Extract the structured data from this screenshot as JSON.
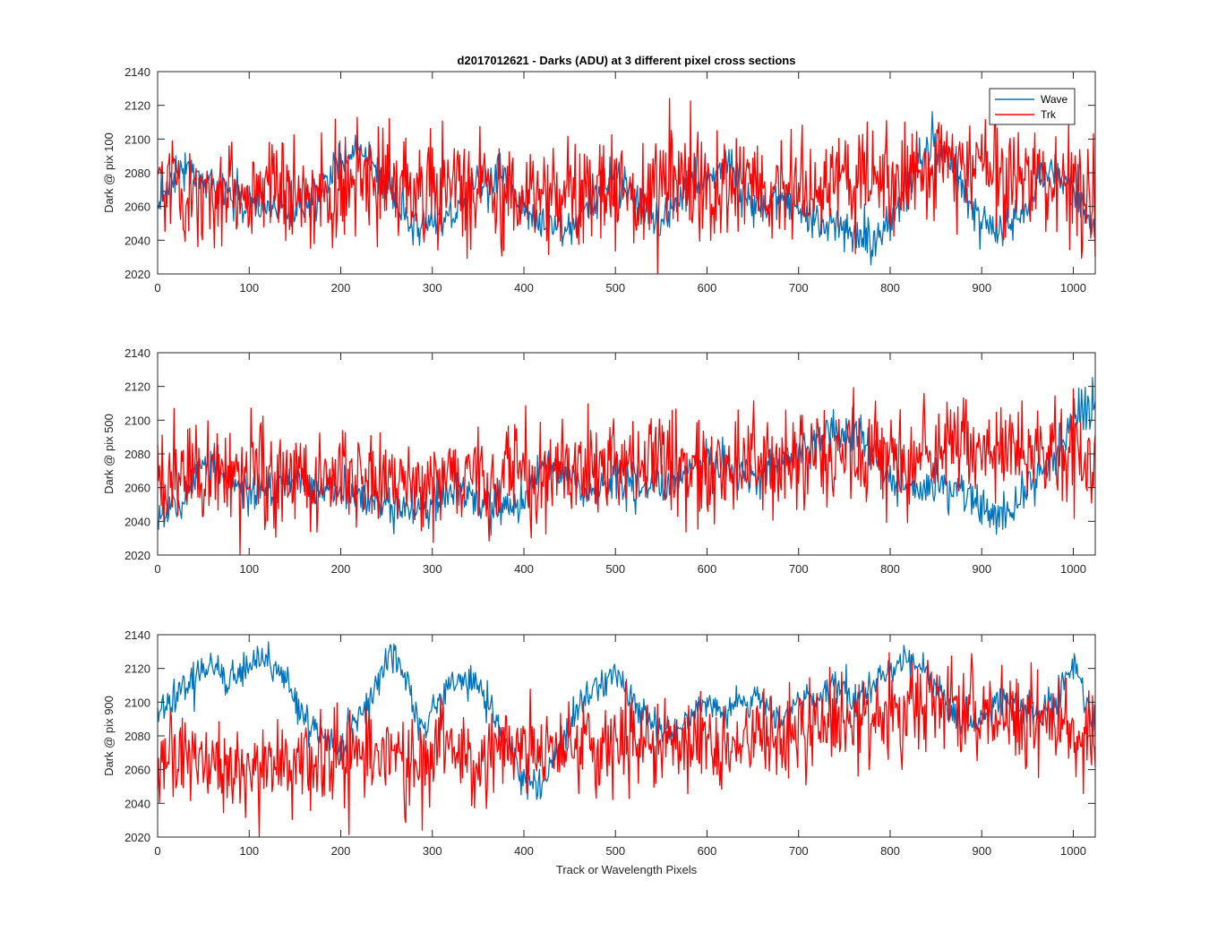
{
  "chart_data": [
    {
      "type": "line",
      "title": "d2017012621 - Darks (ADU) at 3 different pixel cross sections",
      "ylabel": "Dark @ pix 100",
      "xlabel": "",
      "xlim": [
        0,
        1024
      ],
      "ylim": [
        2020,
        2140
      ],
      "xticks": [
        0,
        100,
        200,
        300,
        400,
        500,
        600,
        700,
        800,
        900,
        1000
      ],
      "yticks": [
        2020,
        2040,
        2060,
        2080,
        2100,
        2120,
        2140
      ],
      "legend": {
        "placement": "top-right",
        "entries": [
          "Wave",
          "Trk"
        ]
      },
      "series": [
        {
          "name": "Wave",
          "color": "#0072BD",
          "x": [
            0,
            25,
            50,
            75,
            100,
            125,
            150,
            175,
            200,
            220,
            250,
            275,
            300,
            325,
            350,
            375,
            400,
            425,
            450,
            475,
            500,
            525,
            550,
            575,
            600,
            625,
            650,
            675,
            700,
            725,
            750,
            775,
            800,
            825,
            850,
            875,
            900,
            925,
            950,
            975,
            1000,
            1024
          ],
          "y": [
            2065,
            2082,
            2075,
            2068,
            2063,
            2058,
            2060,
            2066,
            2085,
            2095,
            2072,
            2050,
            2052,
            2058,
            2072,
            2080,
            2060,
            2045,
            2050,
            2062,
            2082,
            2060,
            2052,
            2068,
            2078,
            2082,
            2060,
            2065,
            2058,
            2050,
            2045,
            2038,
            2050,
            2082,
            2100,
            2078,
            2050,
            2048,
            2062,
            2085,
            2070,
            2045
          ],
          "noise": 6
        },
        {
          "name": "Trk",
          "color": "#FF0000",
          "x": [
            0,
            100,
            200,
            300,
            400,
            500,
            600,
            700,
            800,
            900,
            1000,
            1024
          ],
          "y": [
            2070,
            2068,
            2070,
            2070,
            2068,
            2070,
            2068,
            2072,
            2078,
            2085,
            2075,
            2065
          ],
          "noise": 16
        }
      ]
    },
    {
      "type": "line",
      "title": "",
      "ylabel": "Dark @ pix 500",
      "xlabel": "",
      "xlim": [
        0,
        1024
      ],
      "ylim": [
        2020,
        2140
      ],
      "xticks": [
        0,
        100,
        200,
        300,
        400,
        500,
        600,
        700,
        800,
        900,
        1000
      ],
      "yticks": [
        2020,
        2040,
        2060,
        2080,
        2100,
        2120,
        2140
      ],
      "series": [
        {
          "name": "Wave",
          "color": "#0072BD",
          "x": [
            0,
            25,
            50,
            75,
            100,
            125,
            150,
            175,
            200,
            225,
            250,
            275,
            300,
            325,
            350,
            375,
            400,
            425,
            450,
            475,
            500,
            525,
            550,
            575,
            600,
            625,
            650,
            675,
            700,
            725,
            750,
            775,
            800,
            825,
            850,
            875,
            900,
            925,
            950,
            975,
            1000,
            1024
          ],
          "y": [
            2045,
            2048,
            2075,
            2068,
            2055,
            2060,
            2065,
            2058,
            2060,
            2055,
            2050,
            2045,
            2052,
            2058,
            2052,
            2048,
            2052,
            2075,
            2065,
            2058,
            2065,
            2058,
            2062,
            2070,
            2080,
            2072,
            2065,
            2072,
            2082,
            2088,
            2095,
            2085,
            2065,
            2058,
            2065,
            2060,
            2048,
            2040,
            2062,
            2075,
            2100,
            2108
          ],
          "noise": 6
        },
        {
          "name": "Trk",
          "color": "#FF0000",
          "x": [
            0,
            100,
            200,
            300,
            400,
            500,
            600,
            700,
            800,
            900,
            1000,
            1024
          ],
          "y": [
            2062,
            2065,
            2065,
            2062,
            2068,
            2072,
            2070,
            2075,
            2080,
            2085,
            2080,
            2068
          ],
          "noise": 15
        }
      ]
    },
    {
      "type": "line",
      "title": "",
      "ylabel": "Dark @ pix 900",
      "xlabel": "Track or Wavelength Pixels",
      "xlim": [
        0,
        1024
      ],
      "ylim": [
        2020,
        2140
      ],
      "xticks": [
        0,
        100,
        200,
        300,
        400,
        500,
        600,
        700,
        800,
        900,
        1000
      ],
      "yticks": [
        2020,
        2040,
        2060,
        2080,
        2100,
        2120,
        2140
      ],
      "series": [
        {
          "name": "Wave",
          "color": "#0072BD",
          "x": [
            0,
            15,
            30,
            45,
            60,
            80,
            100,
            120,
            140,
            160,
            180,
            200,
            220,
            240,
            255,
            270,
            285,
            300,
            320,
            340,
            360,
            380,
            400,
            420,
            440,
            460,
            480,
            500,
            520,
            540,
            560,
            580,
            600,
            620,
            640,
            660,
            680,
            700,
            720,
            740,
            760,
            780,
            800,
            820,
            840,
            860,
            880,
            900,
            920,
            940,
            960,
            980,
            1000,
            1024
          ],
          "y": [
            2090,
            2100,
            2110,
            2118,
            2120,
            2112,
            2120,
            2125,
            2112,
            2088,
            2080,
            2072,
            2092,
            2112,
            2130,
            2115,
            2085,
            2095,
            2112,
            2115,
            2100,
            2075,
            2055,
            2050,
            2072,
            2098,
            2108,
            2118,
            2100,
            2088,
            2080,
            2092,
            2098,
            2095,
            2102,
            2102,
            2088,
            2098,
            2105,
            2110,
            2100,
            2108,
            2118,
            2125,
            2120,
            2100,
            2088,
            2090,
            2102,
            2098,
            2092,
            2100,
            2125,
            2082
          ],
          "noise": 5
        },
        {
          "name": "Trk",
          "color": "#FF0000",
          "x": [
            0,
            100,
            200,
            300,
            400,
            500,
            600,
            700,
            750,
            800,
            850,
            900,
            950,
            1000,
            1024
          ],
          "y": [
            2065,
            2062,
            2065,
            2068,
            2070,
            2075,
            2075,
            2082,
            2090,
            2095,
            2100,
            2095,
            2090,
            2085,
            2078
          ],
          "noise": 14
        }
      ]
    }
  ]
}
